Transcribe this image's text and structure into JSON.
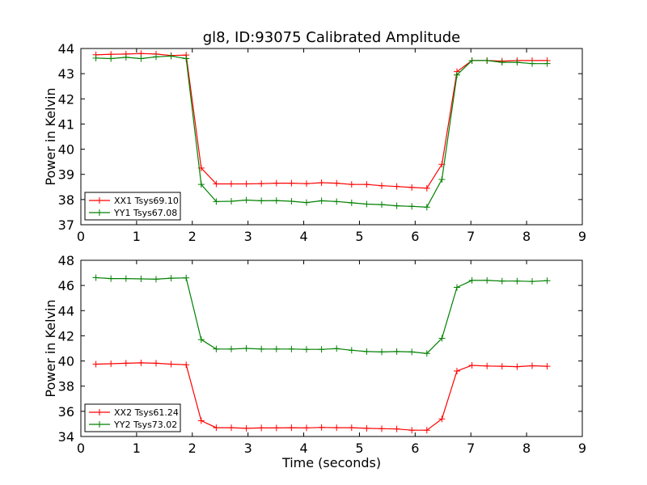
{
  "figure": {
    "title": "gl8, ID:93075 Calibrated Amplitude"
  },
  "chart_data": [
    {
      "type": "line",
      "title": "gl8, ID:93075 Calibrated Amplitude",
      "xlabel": "",
      "ylabel": "Power in Kelvin",
      "xlim": [
        0,
        9
      ],
      "ylim": [
        37,
        44
      ],
      "xticks": [
        0,
        1,
        2,
        3,
        4,
        5,
        6,
        7,
        8,
        9
      ],
      "yticks": [
        37,
        38,
        39,
        40,
        41,
        42,
        43,
        44
      ],
      "grid": false,
      "legend_position": "lower-left",
      "x": [
        0.27,
        0.54,
        0.81,
        1.08,
        1.35,
        1.62,
        1.89,
        2.16,
        2.43,
        2.7,
        2.97,
        3.24,
        3.51,
        3.78,
        4.05,
        4.32,
        4.59,
        4.86,
        5.13,
        5.4,
        5.67,
        5.94,
        6.21,
        6.48,
        6.75,
        7.02,
        7.29,
        7.56,
        7.83,
        8.1,
        8.37
      ],
      "series": [
        {
          "name": "XX1 Tsys69.10",
          "color": "#ff0000",
          "values": [
            43.75,
            43.77,
            43.78,
            43.8,
            43.78,
            43.72,
            43.74,
            39.25,
            38.62,
            38.62,
            38.62,
            38.63,
            38.65,
            38.65,
            38.63,
            38.67,
            38.65,
            38.6,
            38.6,
            38.55,
            38.52,
            38.48,
            38.45,
            39.4,
            43.08,
            43.52,
            43.52,
            43.5,
            43.52,
            43.52,
            43.52
          ]
        },
        {
          "name": "YY1 Tsys67.08",
          "color": "#008000",
          "values": [
            43.62,
            43.6,
            43.65,
            43.6,
            43.67,
            43.7,
            43.6,
            38.6,
            37.92,
            37.93,
            37.98,
            37.95,
            37.96,
            37.93,
            37.88,
            37.95,
            37.92,
            37.87,
            37.82,
            37.8,
            37.75,
            37.73,
            37.7,
            38.8,
            42.95,
            43.52,
            43.52,
            43.45,
            43.45,
            43.4,
            43.4
          ]
        }
      ]
    },
    {
      "type": "line",
      "title": "",
      "xlabel": "Time (seconds)",
      "ylabel": "Power in Kelvin",
      "xlim": [
        0,
        9
      ],
      "ylim": [
        34,
        48
      ],
      "xticks": [
        0,
        1,
        2,
        3,
        4,
        5,
        6,
        7,
        8,
        9
      ],
      "yticks": [
        34,
        36,
        38,
        40,
        42,
        44,
        46,
        48
      ],
      "grid": false,
      "legend_position": "lower-left",
      "x": [
        0.27,
        0.54,
        0.81,
        1.08,
        1.35,
        1.62,
        1.89,
        2.16,
        2.43,
        2.7,
        2.97,
        3.24,
        3.51,
        3.78,
        4.05,
        4.32,
        4.59,
        4.86,
        5.13,
        5.4,
        5.67,
        5.94,
        6.21,
        6.48,
        6.75,
        7.02,
        7.29,
        7.56,
        7.83,
        8.1,
        8.37
      ],
      "series": [
        {
          "name": "XX2 Tsys61.24",
          "color": "#ff0000",
          "values": [
            39.75,
            39.78,
            39.82,
            39.85,
            39.82,
            39.75,
            39.7,
            35.25,
            34.7,
            34.7,
            34.65,
            34.68,
            34.68,
            34.7,
            34.68,
            34.72,
            34.7,
            34.7,
            34.65,
            34.62,
            34.6,
            34.5,
            34.5,
            35.4,
            39.2,
            39.65,
            39.6,
            39.58,
            39.55,
            39.62,
            39.58
          ]
        },
        {
          "name": "YY2 Tsys73.02",
          "color": "#008000",
          "values": [
            46.62,
            46.55,
            46.55,
            46.52,
            46.5,
            46.58,
            46.6,
            41.7,
            40.95,
            40.95,
            41.0,
            40.95,
            40.95,
            40.95,
            40.92,
            40.92,
            40.98,
            40.85,
            40.75,
            40.72,
            40.75,
            40.72,
            40.6,
            41.8,
            45.85,
            46.4,
            46.4,
            46.35,
            46.35,
            46.32,
            46.38
          ]
        }
      ]
    }
  ]
}
